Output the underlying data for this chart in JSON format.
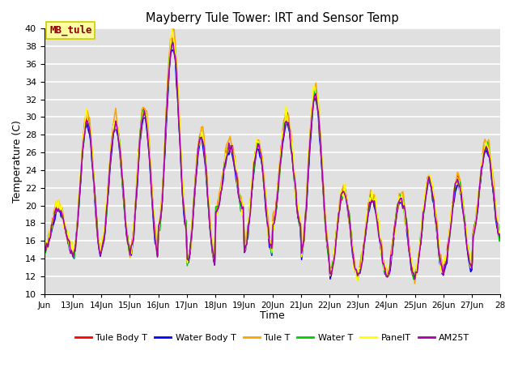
{
  "title": "Mayberry Tule Tower: IRT and Sensor Temp",
  "xlabel": "Time",
  "ylabel": "Temperature (C)",
  "ylim": [
    10,
    40
  ],
  "yticks": [
    10,
    12,
    14,
    16,
    18,
    20,
    22,
    24,
    26,
    28,
    30,
    32,
    34,
    36,
    38,
    40
  ],
  "xtick_labels": [
    "Jun",
    "13Jun",
    "14Jun",
    "15Jun",
    "16Jun",
    "17Jun",
    "18Jun",
    "19Jun",
    "20Jun",
    "21Jun",
    "22Jun",
    "23Jun",
    "24Jun",
    "25Jun",
    "26Jun",
    "27Jun",
    "28"
  ],
  "annotation_text": "MB_tule",
  "annotation_color": "#8B0000",
  "annotation_bg": "#FFFFA0",
  "annotation_border": "#CCCC00",
  "bg_color": "#E0E0E0",
  "grid_color": "#FFFFFF",
  "series": {
    "Tule Body T": {
      "color": "#FF0000",
      "lw": 1.2
    },
    "Water Body T": {
      "color": "#0000FF",
      "lw": 1.2
    },
    "Tule T": {
      "color": "#FFA500",
      "lw": 1.2
    },
    "Water T": {
      "color": "#00CC00",
      "lw": 1.2
    },
    "PanelT": {
      "color": "#FFFF00",
      "lw": 1.2
    },
    "AM25T": {
      "color": "#AA00AA",
      "lw": 1.2
    }
  }
}
